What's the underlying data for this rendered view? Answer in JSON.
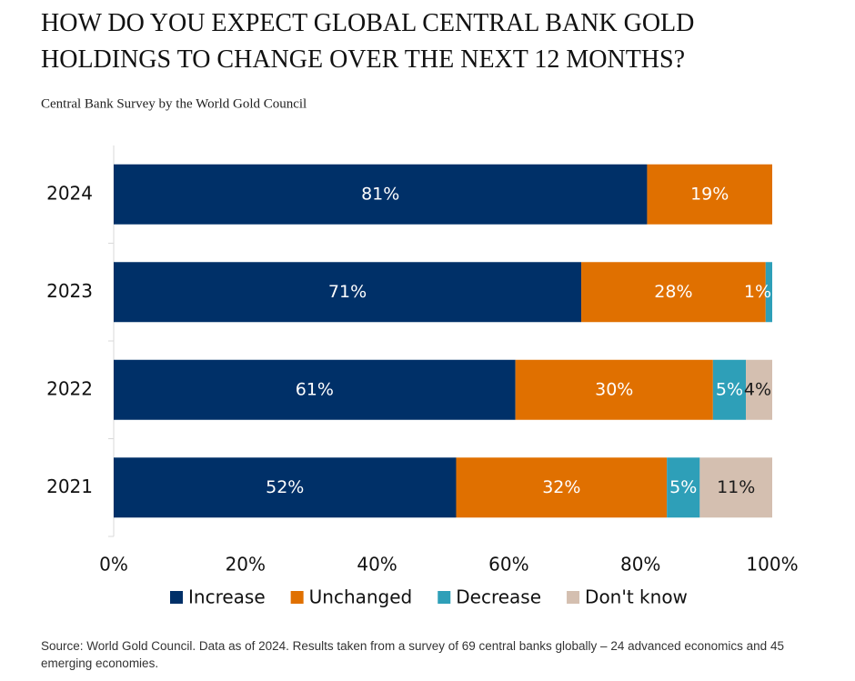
{
  "chart_data": {
    "type": "stacked-bar-horizontal",
    "title": "HOW DO YOU EXPECT GLOBAL CENTRAL BANK GOLD HOLDINGS TO CHANGE OVER THE NEXT 12 MONTHS?",
    "subtitle": "Central Bank Survey by the World Gold Council",
    "source": "Source: World Gold Council. Data as of 2024. Results taken from a survey of 69 central banks globally – 24 advanced economics and 45 emerging economies.",
    "categories": [
      "2024",
      "2023",
      "2022",
      "2021"
    ],
    "series": [
      {
        "name": "Increase",
        "color": "#003068",
        "label_color": "#ffffff",
        "values": [
          81,
          71,
          61,
          52
        ],
        "value_labels": [
          "81%",
          "71%",
          "61%",
          "52%"
        ]
      },
      {
        "name": "Unchanged",
        "color": "#e07000",
        "label_color": "#ffffff",
        "values": [
          19,
          28,
          30,
          32
        ],
        "value_labels": [
          "19%",
          "28%",
          "30%",
          "32%"
        ]
      },
      {
        "name": "Decrease",
        "color": "#2e9fb8",
        "label_color": "#ffffff",
        "values": [
          null,
          1,
          5,
          5
        ],
        "value_labels": [
          null,
          "1%",
          "5%",
          "5%"
        ]
      },
      {
        "name": "Don't know",
        "color": "#d4bfb0",
        "label_color": "#1a1a1a",
        "values": [
          null,
          null,
          4,
          11
        ],
        "value_labels": [
          null,
          null,
          "4%",
          "11%"
        ]
      }
    ],
    "xlim": [
      0,
      100
    ],
    "xticks": [
      {
        "value": 0,
        "label": "0%"
      },
      {
        "value": 20,
        "label": "20%"
      },
      {
        "value": 40,
        "label": "40%"
      },
      {
        "value": 60,
        "label": "60%"
      },
      {
        "value": 80,
        "label": "80%"
      },
      {
        "value": 100,
        "label": "100%"
      }
    ],
    "legend": "bottom"
  }
}
